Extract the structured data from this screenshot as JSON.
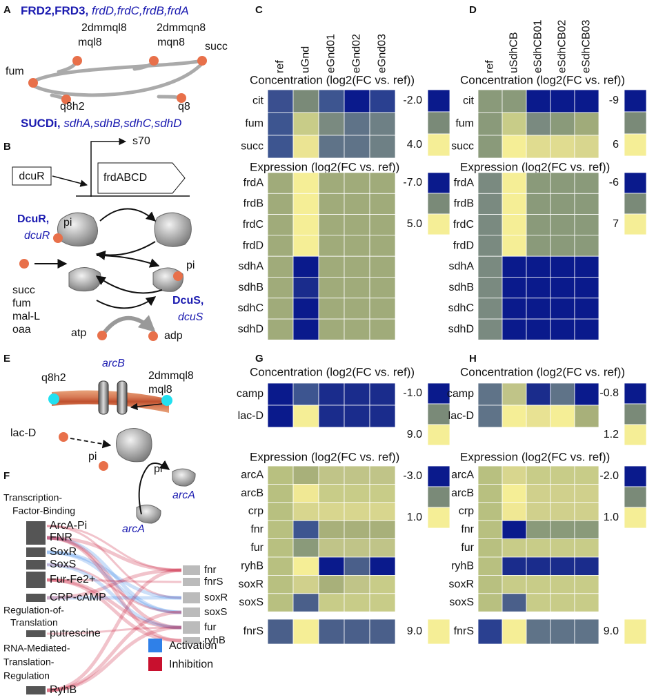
{
  "panel_labels": [
    "A",
    "B",
    "C",
    "D",
    "E",
    "F",
    "G",
    "H"
  ],
  "panel_a": {
    "title_bold": "FRD2,FRD3,",
    "title_genes": "frdD,frdC,frdB,frdA",
    "nodes": [
      "2dmmql8",
      "mql8",
      "2dmmqn8",
      "mqn8",
      "fum",
      "succ",
      "q8h2",
      "q8"
    ],
    "bottom_bold": "SUCDi,",
    "bottom_genes": "sdhA,sdhB,sdhC,sdhD"
  },
  "panel_b": {
    "sigma": "s70",
    "regulator_box": "dcuR",
    "operon": "frdABCD",
    "dcur_protein": "DcuR,",
    "dcur_gene": "dcuR",
    "pi_1": "pi",
    "signals": [
      "succ",
      "fum",
      "mal-L",
      "oaa"
    ],
    "atp": "atp",
    "adp": "adp",
    "pi_2": "pi",
    "dcus_protein": "DcuS,",
    "dcus_gene": "dcuS"
  },
  "panel_e": {
    "arcb": "arcB",
    "q8h2": "q8h2",
    "quinone": [
      "2dmmql8",
      "mql8"
    ],
    "lacd": "lac-D",
    "pi_labels": [
      "pi",
      "pi"
    ],
    "arca": [
      "arcA",
      "arcA"
    ]
  },
  "panel_f": {
    "groups": [
      {
        "label": [
          "Transcription-",
          "Factor-Binding"
        ],
        "regulators": [
          "ArcA-Pi",
          "FNR",
          "SoxR",
          "SoxS",
          "Fur-Fe2+",
          "CRP-cAMP"
        ]
      },
      {
        "label": [
          "Regulation-of-",
          "Translation"
        ],
        "regulators": [
          "putrescine"
        ]
      },
      {
        "label": [
          "RNA-Mediated-",
          "Translation-",
          "Regulation"
        ],
        "regulators": [
          "RyhB"
        ]
      }
    ],
    "targets": [
      "fnr",
      "fnrS",
      "soxR",
      "soxS",
      "fur",
      "ryhB"
    ],
    "legend": [
      {
        "name": "Activation",
        "color": "#2f80e8"
      },
      {
        "name": "Inhibition",
        "color": "#c8102e"
      }
    ]
  },
  "heatmaps": [
    {
      "columns": [
        "ref",
        "uGnd",
        "eGnd01",
        "eGnd02",
        "eGnd03"
      ],
      "blocks": [
        {
          "title": "Concentration (log2(FC vs. ref))",
          "rows": [
            "cit",
            "fum",
            "succ"
          ],
          "cells": [
            [
              "#3a4f8f",
              "#7a8a78",
              "#3d5590",
              "#0a1a8c",
              "#2a4090"
            ],
            [
              "#3d5590",
              "#c8cc88",
              "#7a8a80",
              "#5f7388",
              "#6e8085"
            ],
            [
              "#3d5590",
              "#ebe493",
              "#5f7388",
              "#5f7388",
              "#6e8085"
            ]
          ],
          "legend": {
            "labels": [
              "-2.0",
              "4.0"
            ],
            "colors": [
              "#0a1a8c",
              "#7a8a78",
              "#f5ee96"
            ]
          }
        },
        {
          "title": "Expression (log2(FC vs. ref))",
          "rows": [
            "frdA",
            "frdB",
            "frdC",
            "frdD",
            "sdhA",
            "sdhB",
            "sdhC",
            "sdhD"
          ],
          "cells": [
            [
              "#a0ab7a",
              "#f5ee96",
              "#a0ab7a",
              "#a0ab7a",
              "#a0ab7a"
            ],
            [
              "#a0ab7a",
              "#f5ee96",
              "#a0ab7a",
              "#a0ab7a",
              "#a0ab7a"
            ],
            [
              "#a0ab7a",
              "#f5ee96",
              "#a0ab7a",
              "#a0ab7a",
              "#a0ab7a"
            ],
            [
              "#a0ab7a",
              "#f5ee96",
              "#a0ab7a",
              "#a0ab7a",
              "#a0ab7a"
            ],
            [
              "#a0ab7a",
              "#0a1a8c",
              "#a0ab7a",
              "#a0ab7a",
              "#a0ab7a"
            ],
            [
              "#a0ab7a",
              "#1a2c8c",
              "#a0ab7a",
              "#a0ab7a",
              "#a0ab7a"
            ],
            [
              "#a0ab7a",
              "#0a1a8c",
              "#a0ab7a",
              "#a0ab7a",
              "#a0ab7a"
            ],
            [
              "#a0ab7a",
              "#0a1a8c",
              "#a0ab7a",
              "#a0ab7a",
              "#a0ab7a"
            ]
          ],
          "legend": {
            "labels": [
              "-7.0",
              "5.0"
            ],
            "colors": [
              "#0a1a8c",
              "#7a8a78",
              "#f5ee96"
            ]
          }
        }
      ]
    },
    {
      "columns": [
        "ref",
        "uSdhCB",
        "eSdhCB01",
        "eSdhCB02",
        "eSdhCB03"
      ],
      "blocks": [
        {
          "title": "Concentration (log2(FC vs. ref))",
          "rows": [
            "cit",
            "fum",
            "succ"
          ],
          "cells": [
            [
              "#8a9a7a",
              "#8a9a7a",
              "#0a1a8c",
              "#0a1a8c",
              "#0a1a8c"
            ],
            [
              "#8a9a7a",
              "#c8cc88",
              "#7a8a80",
              "#8a9a7a",
              "#a0ab7a"
            ],
            [
              "#8a9a7a",
              "#f5ee96",
              "#e0dc90",
              "#e0dc90",
              "#d8d68e"
            ]
          ],
          "legend": {
            "labels": [
              "-9",
              "6"
            ],
            "colors": [
              "#0a1a8c",
              "#7a8a78",
              "#f5ee96"
            ]
          }
        },
        {
          "title": "Expression (log2(FC vs. ref))",
          "rows": [
            "frdA",
            "frdB",
            "frdC",
            "frdD",
            "sdhA",
            "sdhB",
            "sdhC",
            "sdhD"
          ],
          "cells": [
            [
              "#7a8a80",
              "#f5ee96",
              "#8a9a7a",
              "#8a9a7a",
              "#8a9a7a"
            ],
            [
              "#7a8a80",
              "#f5ee96",
              "#8a9a7a",
              "#8a9a7a",
              "#8a9a7a"
            ],
            [
              "#7a8a80",
              "#f5ee96",
              "#8a9a7a",
              "#8a9a7a",
              "#8a9a7a"
            ],
            [
              "#7a8a80",
              "#f5ee96",
              "#8a9a7a",
              "#8a9a7a",
              "#8a9a7a"
            ],
            [
              "#7a8a80",
              "#0a1a8c",
              "#0a1a8c",
              "#0a1a8c",
              "#0a1a8c"
            ],
            [
              "#7a8a80",
              "#0a1a8c",
              "#0a1a8c",
              "#0a1a8c",
              "#0a1a8c"
            ],
            [
              "#7a8a80",
              "#0a1a8c",
              "#0a1a8c",
              "#0a1a8c",
              "#0a1a8c"
            ],
            [
              "#7a8a80",
              "#0a1a8c",
              "#0a1a8c",
              "#0a1a8c",
              "#0a1a8c"
            ]
          ],
          "legend": {
            "labels": [
              "-6",
              "7"
            ],
            "colors": [
              "#0a1a8c",
              "#7a8a78",
              "#f5ee96"
            ]
          }
        }
      ]
    },
    {
      "blocks": [
        {
          "title": "Concentration (log2(FC vs. ref))",
          "rows": [
            "camp",
            "lac-D"
          ],
          "cells": [
            [
              "#0a1a8c",
              "#3d5590",
              "#1a2c8c",
              "#1a2c8c",
              "#1a2c8c"
            ],
            [
              "#0a1a8c",
              "#f5ee96",
              "#1a2c8c",
              "#1a2c8c",
              "#1a2c8c"
            ]
          ],
          "legend": {
            "labels": [
              "-1.0",
              "9.0"
            ],
            "colors": [
              "#0a1a8c",
              "#7a8a78",
              "#f5ee96"
            ]
          }
        },
        {
          "title": "Expression (log2(FC vs. ref))",
          "rows": [
            "arcA",
            "arcB",
            "crp",
            "fnr",
            "fur",
            "ryhB",
            "soxR",
            "soxS"
          ],
          "cells": [
            [
              "#b8c080",
              "#a8b07a",
              "#c0c488",
              "#c0c488",
              "#c0c488"
            ],
            [
              "#b8c080",
              "#f0e894",
              "#c8cc88",
              "#c8cc88",
              "#c8cc88"
            ],
            [
              "#b8c080",
              "#d8d68e",
              "#d8d68e",
              "#d8d68e",
              "#d8d68e"
            ],
            [
              "#b8c080",
              "#3d5590",
              "#a8b07a",
              "#a8b07a",
              "#a8b07a"
            ],
            [
              "#b8c080",
              "#8a9a7a",
              "#c0c488",
              "#c0c488",
              "#c0c488"
            ],
            [
              "#b8c080",
              "#f5ee96",
              "#0a1a8c",
              "#4a5f8a",
              "#0a1a8c"
            ],
            [
              "#b8c080",
              "#d0d08c",
              "#a8b07a",
              "#c0c488",
              "#c8cc88"
            ],
            [
              "#b8c080",
              "#4a5f8a",
              "#c8cc88",
              "#c8cc88",
              "#c8cc88"
            ]
          ],
          "legend": {
            "labels": [
              "-3.0",
              "1.0"
            ],
            "colors": [
              "#0a1a8c",
              "#7a8a78",
              "#f5ee96"
            ]
          }
        },
        {
          "rows": [
            "fnrS"
          ],
          "cells": [
            [
              "#4a5f8a",
              "#f5ee96",
              "#4a5f8a",
              "#4a5f8a",
              "#4a5f8a"
            ]
          ],
          "legend": {
            "labels": [
              "9.0"
            ],
            "colors": [
              "#f5ee96"
            ]
          }
        }
      ]
    },
    {
      "blocks": [
        {
          "title": "Concentration (log2(FC vs. ref))",
          "rows": [
            "camp",
            "lac-D"
          ],
          "cells": [
            [
              "#5f7388",
              "#c0c488",
              "#1a2c8c",
              "#5f7388",
              "#0a1a8c"
            ],
            [
              "#5f7388",
              "#f5ee96",
              "#e8e293",
              "#f5ee96",
              "#a8b07a"
            ]
          ],
          "legend": {
            "labels": [
              "-0.8",
              "1.2"
            ],
            "colors": [
              "#0a1a8c",
              "#7a8a78",
              "#f5ee96"
            ]
          }
        },
        {
          "title": "Expression (log2(FC vs. ref))",
          "rows": [
            "arcA",
            "arcB",
            "crp",
            "fnr",
            "fur",
            "ryhB",
            "soxR",
            "soxS"
          ],
          "cells": [
            [
              "#b8c080",
              "#d8d68e",
              "#c8cc88",
              "#c8cc88",
              "#c8cc88"
            ],
            [
              "#b8c080",
              "#f5ee96",
              "#d0d08c",
              "#d0d08c",
              "#d0d08c"
            ],
            [
              "#b8c080",
              "#f0e894",
              "#d0d08c",
              "#d0d08c",
              "#d0d08c"
            ],
            [
              "#b8c080",
              "#0a1a8c",
              "#8a9a7a",
              "#8a9a7a",
              "#8a9a7a"
            ],
            [
              "#b8c080",
              "#c8cc88",
              "#c8cc88",
              "#c8cc88",
              "#c8cc88"
            ],
            [
              "#b8c080",
              "#1a2c8c",
              "#1a2c8c",
              "#1a2c8c",
              "#1a2c8c"
            ],
            [
              "#b8c080",
              "#c8cc88",
              "#c8cc88",
              "#c8cc88",
              "#c8cc88"
            ],
            [
              "#b8c080",
              "#4a5f8a",
              "#c8cc88",
              "#c8cc88",
              "#c8cc88"
            ]
          ],
          "legend": {
            "labels": [
              "-2.0",
              "1.0"
            ],
            "colors": [
              "#0a1a8c",
              "#7a8a78",
              "#f5ee96"
            ]
          }
        },
        {
          "rows": [
            "fnrS"
          ],
          "cells": [
            [
              "#2a4090",
              "#f5ee96",
              "#5f7388",
              "#5f7388",
              "#5f7388"
            ]
          ],
          "legend": {
            "labels": [
              "9.0"
            ],
            "colors": [
              "#f5ee96"
            ]
          }
        }
      ]
    }
  ]
}
